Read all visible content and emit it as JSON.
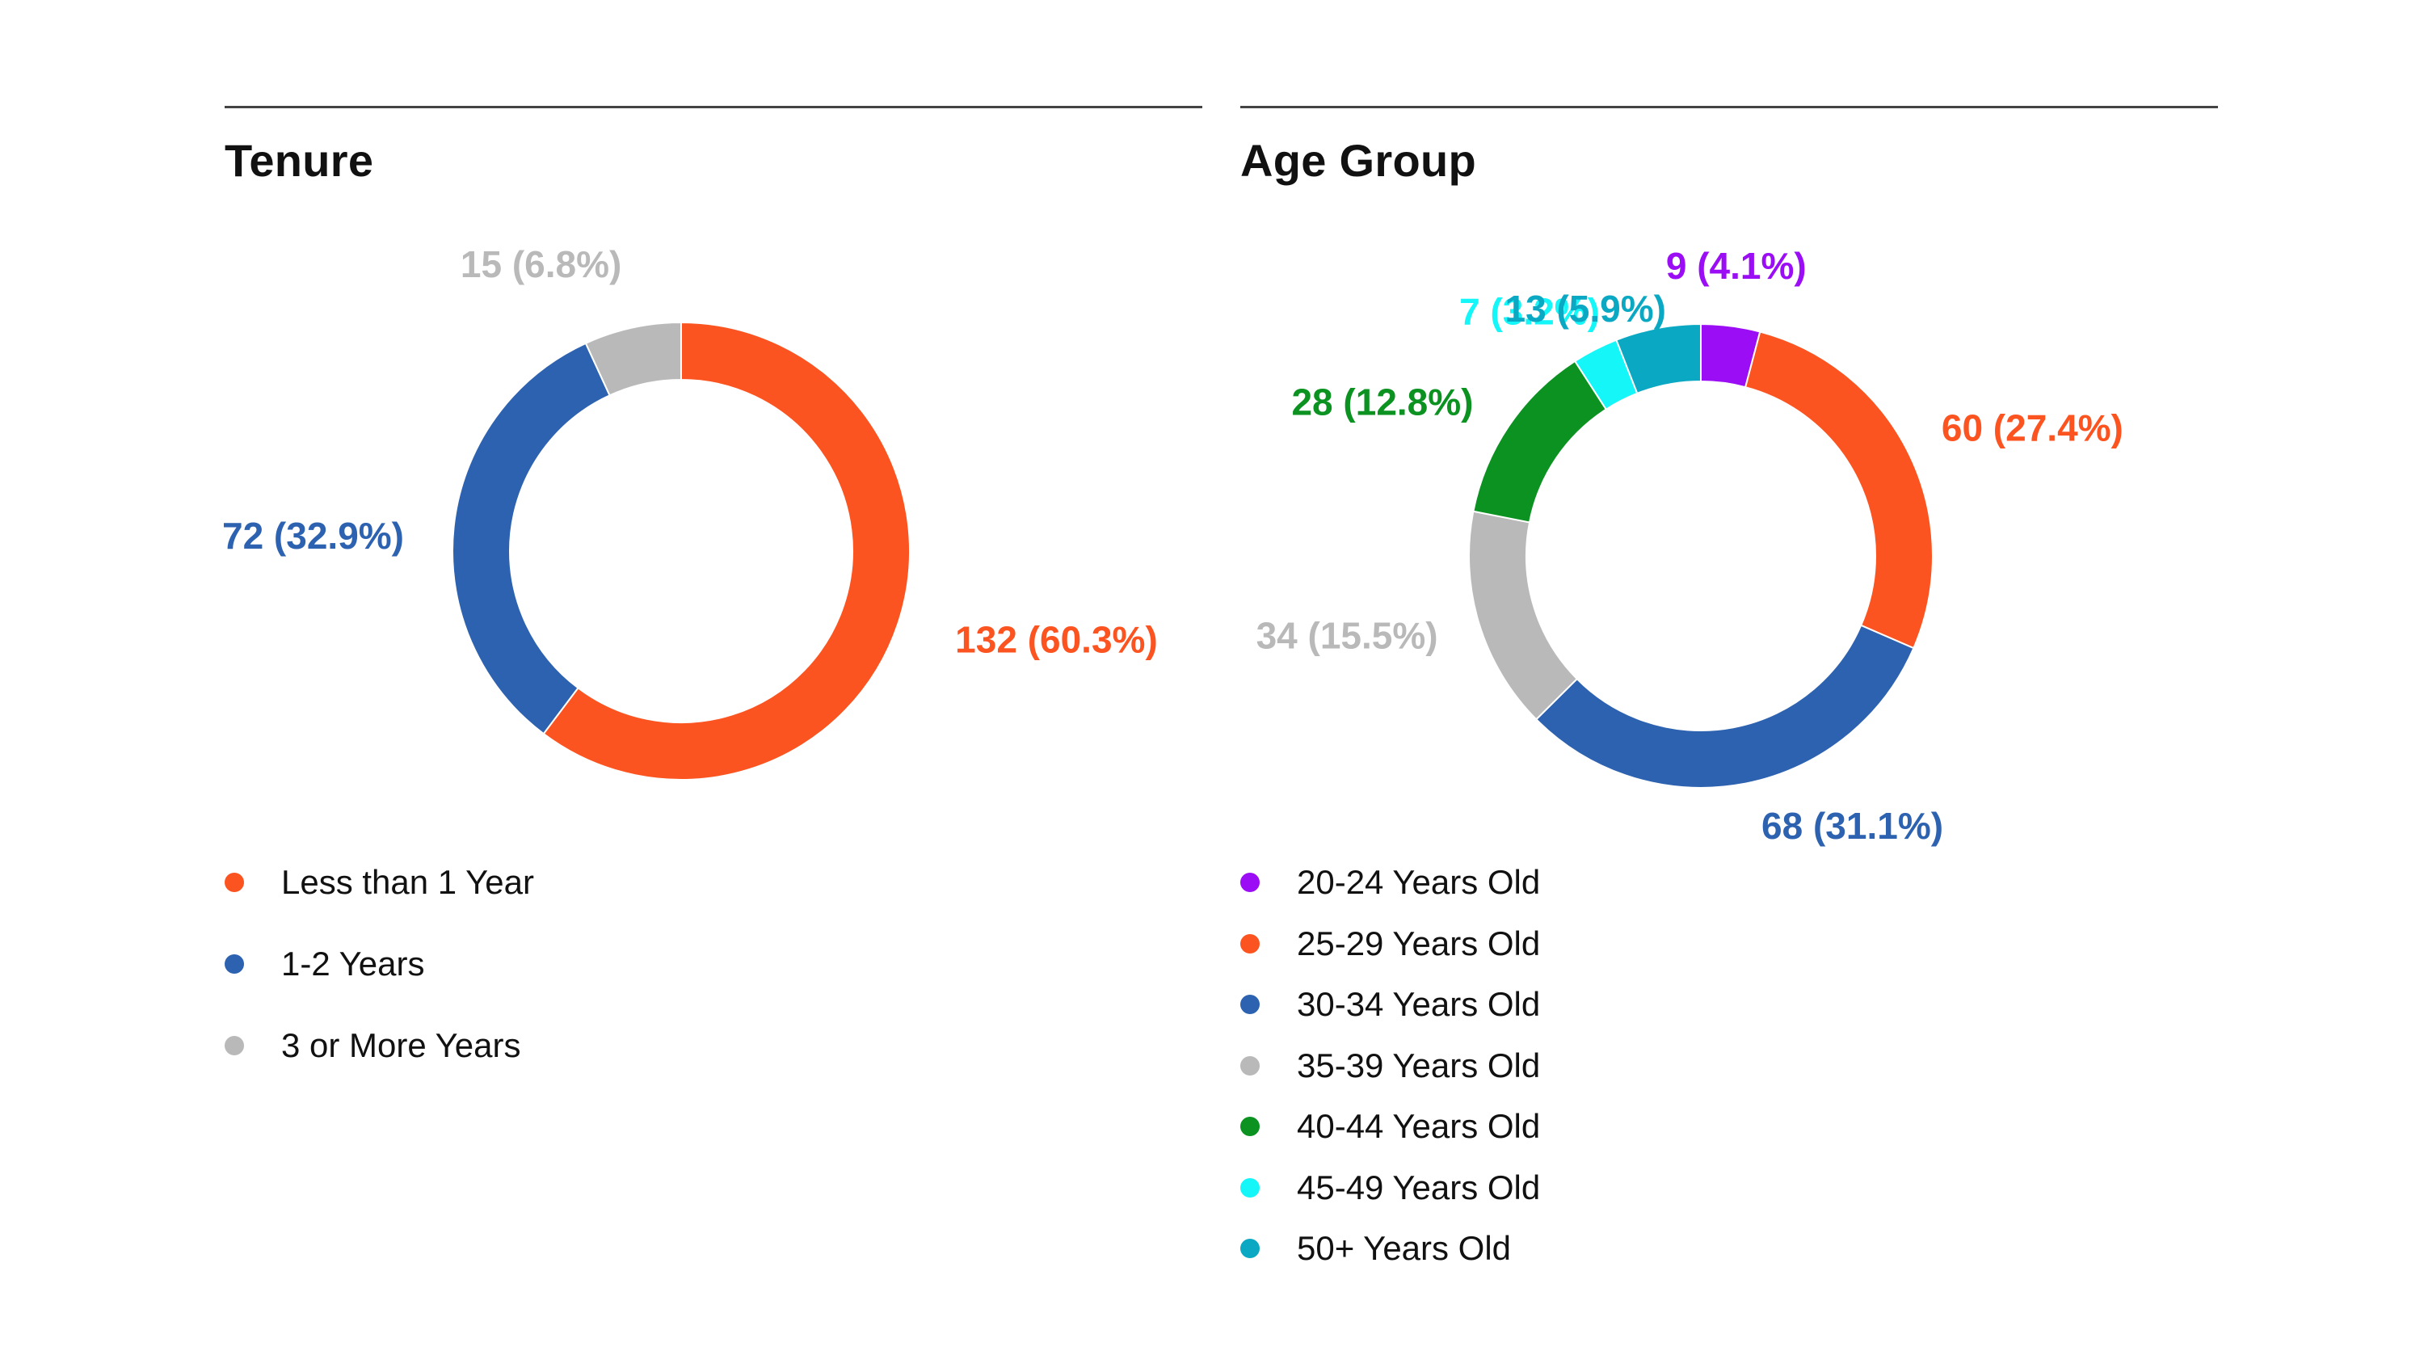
{
  "chart_data": [
    {
      "type": "pie",
      "title": "Tenure",
      "categories": [
        "Less than 1 Year",
        "1-2 Years",
        "3 or More Years"
      ],
      "values": [
        132,
        72,
        15
      ],
      "data_labels": [
        "132 (60.3%)",
        "72 (32.9%)",
        "15 (6.8%)"
      ],
      "colors": [
        "#fc5420",
        "#2d62b0",
        "#b9b9b9"
      ],
      "legend_position": "bottom-left",
      "style": "donut"
    },
    {
      "type": "pie",
      "title": "Age Group",
      "categories": [
        "20-24 Years Old",
        "25-29 Years Old",
        "30-34 Years Old",
        "35-39 Years Old",
        "40-44 Years Old",
        "45-49 Years Old",
        "50+ Years Old"
      ],
      "values": [
        9,
        60,
        68,
        34,
        28,
        7,
        13
      ],
      "data_labels": [
        "9 (4.1%)",
        "60 (27.4%)",
        "68 (31.1%)",
        "34 (15.5%)",
        "28 (12.8%)",
        "7 (3.2%)",
        "13 (5.9%)"
      ],
      "colors": [
        "#9b0ef5",
        "#fc5420",
        "#2d62b0",
        "#b9b9b9",
        "#0b9221",
        "#14f6f8",
        "#0aa8c2"
      ],
      "legend_position": "bottom-left",
      "style": "donut"
    }
  ]
}
